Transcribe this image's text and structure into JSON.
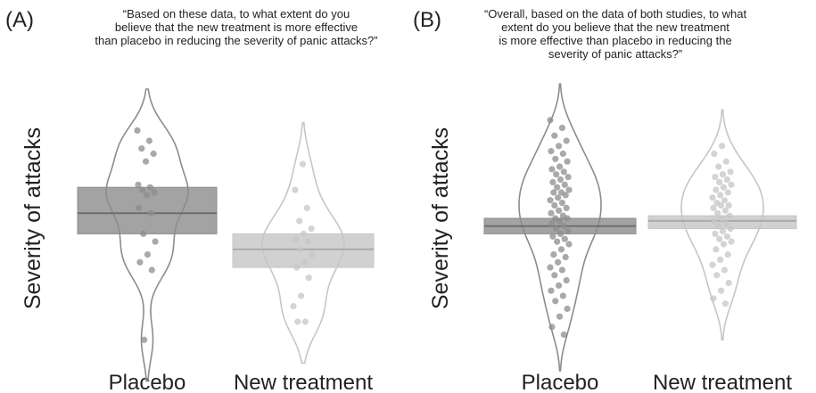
{
  "chart_data": [
    {
      "type": "violin",
      "panel_label": "(A)",
      "title": [
        "“Based on these data, to what extent do you",
        "believe that the new treatment is more effective",
        "than placebo in reducing the severity of panic attacks?”"
      ],
      "y_label": "Severity of attacks",
      "ylim": [
        0,
        100
      ],
      "categories": [
        "Placebo",
        "New treatment"
      ],
      "series": [
        {
          "color": "#8c8c8c",
          "mean": 52,
          "ci": [
            44,
            62
          ],
          "values": [
            84,
            80,
            77,
            75,
            72,
            63,
            62,
            61,
            60,
            59,
            54,
            52,
            44,
            41,
            36,
            33,
            30,
            3
          ]
        },
        {
          "color": "#c6c6c6",
          "mean": 38,
          "ci": [
            31,
            44
          ],
          "values": [
            71,
            61,
            54,
            49,
            46,
            44,
            42,
            41,
            38,
            36,
            33,
            31,
            27,
            20,
            16,
            10,
            10
          ]
        }
      ]
    },
    {
      "type": "violin",
      "panel_label": "(B)",
      "title": [
        "“Overall, based on the data of both studies, to what",
        "extent do you believe that the new treatment",
        "is more effective than placebo in reducing the",
        "severity of panic attacks?”"
      ],
      "y_label": "Severity of attacks",
      "ylim": [
        0,
        100
      ],
      "categories": [
        "Placebo",
        "New treatment"
      ],
      "series": [
        {
          "color": "#8c8c8c",
          "mean": 47,
          "ci": [
            44,
            50
          ],
          "values": [
            88,
            85,
            82,
            80,
            78,
            76,
            75,
            73,
            72,
            70,
            69,
            68,
            67,
            66,
            65,
            64,
            63,
            62,
            61,
            60,
            60,
            59,
            58,
            57,
            56,
            55,
            54,
            53,
            52,
            51,
            50,
            50,
            49,
            48,
            47,
            46,
            45,
            44,
            43,
            42,
            41,
            40,
            38,
            36,
            35,
            33,
            31,
            30,
            28,
            26,
            24,
            22,
            20,
            18,
            15,
            12,
            8,
            5
          ]
        },
        {
          "color": "#c6c6c6",
          "mean": 49,
          "ci": [
            46,
            51
          ],
          "values": [
            78,
            75,
            72,
            70,
            68,
            67,
            66,
            65,
            64,
            63,
            62,
            61,
            60,
            59,
            58,
            57,
            56,
            55,
            55,
            54,
            53,
            52,
            51,
            50,
            49,
            48,
            47,
            46,
            45,
            44,
            43,
            42,
            41,
            40,
            38,
            36,
            34,
            32,
            30,
            28,
            25,
            22,
            19,
            17
          ]
        }
      ]
    }
  ]
}
